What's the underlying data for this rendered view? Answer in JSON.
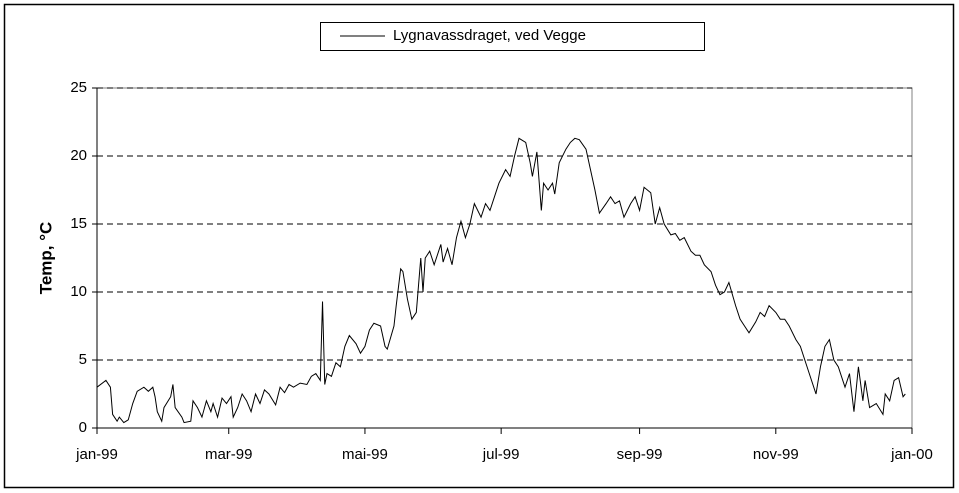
{
  "chart_data": {
    "type": "line",
    "y_label": "Temp, °C",
    "legend": "top",
    "grid": true,
    "xlim": [
      0,
      365
    ],
    "xticks": [
      {
        "value": 0,
        "label": "jan-99"
      },
      {
        "value": 59,
        "label": "mar-99"
      },
      {
        "value": 120,
        "label": "mai-99"
      },
      {
        "value": 181,
        "label": "jul-99"
      },
      {
        "value": 243,
        "label": "sep-99"
      },
      {
        "value": 304,
        "label": "nov-99"
      },
      {
        "value": 365,
        "label": "jan-00"
      }
    ],
    "ylim": [
      0,
      25
    ],
    "yticks": [
      0,
      5,
      10,
      15,
      20,
      25
    ],
    "x": [
      0,
      4,
      6,
      7,
      9,
      10,
      12,
      14,
      16,
      18,
      21,
      23,
      25,
      26,
      27,
      29,
      30,
      33,
      34,
      35,
      38,
      39,
      42,
      43,
      45,
      47,
      49,
      51,
      52,
      54,
      56,
      58,
      60,
      61,
      63,
      65,
      67,
      69,
      71,
      73,
      75,
      77,
      80,
      82,
      84,
      86,
      88,
      91,
      94,
      96,
      98,
      100,
      101,
      102,
      103,
      105,
      107,
      109,
      111,
      113,
      116,
      118,
      120,
      122,
      124,
      127,
      129,
      130,
      133,
      134,
      136,
      137,
      139,
      141,
      143,
      145,
      146,
      147,
      149,
      151,
      154,
      155,
      157,
      159,
      161,
      163,
      165,
      167,
      169,
      172,
      174,
      176,
      178,
      180,
      183,
      185,
      187,
      189,
      192,
      194,
      195,
      197,
      199,
      200,
      202,
      204,
      205,
      207,
      210,
      212,
      214,
      216,
      219,
      221,
      223,
      225,
      228,
      230,
      232,
      234,
      236,
      239,
      241,
      243,
      245,
      248,
      250,
      252,
      254,
      257,
      259,
      261,
      263,
      266,
      268,
      270,
      272,
      275,
      277,
      279,
      281,
      283,
      286,
      288,
      290,
      292,
      295,
      297,
      299,
      301,
      304,
      306,
      308,
      310,
      313,
      315,
      317,
      319,
      322,
      324,
      326,
      328,
      330,
      332,
      335,
      337,
      339,
      341,
      343,
      344,
      346,
      349,
      352,
      353,
      355,
      357,
      359,
      361,
      362
    ],
    "series": [
      {
        "name": "Lygnavassdraget, ved Vegge",
        "color": "#000000",
        "values": [
          3.0,
          3.5,
          3.0,
          1.0,
          0.5,
          0.8,
          0.4,
          0.6,
          1.8,
          2.7,
          3.0,
          2.7,
          3.0,
          2.3,
          1.2,
          0.5,
          1.5,
          2.3,
          3.2,
          1.5,
          0.8,
          0.4,
          0.5,
          2.0,
          1.5,
          0.8,
          2.0,
          1.2,
          1.8,
          0.8,
          2.2,
          1.8,
          2.3,
          0.8,
          1.5,
          2.5,
          2.0,
          1.2,
          2.5,
          1.8,
          2.8,
          2.5,
          1.7,
          3.0,
          2.6,
          3.2,
          3.0,
          3.3,
          3.2,
          3.8,
          4.0,
          3.5,
          9.3,
          3.2,
          4.0,
          3.8,
          4.8,
          4.5,
          6.0,
          6.8,
          6.2,
          5.5,
          6.0,
          7.2,
          7.7,
          7.5,
          6.0,
          5.8,
          7.5,
          9.0,
          11.7,
          11.5,
          9.5,
          8.0,
          8.5,
          12.5,
          10.0,
          12.5,
          13.0,
          12.0,
          13.5,
          12.2,
          13.2,
          12.0,
          14.0,
          15.2,
          14.0,
          15.0,
          16.5,
          15.5,
          16.5,
          16.0,
          17.0,
          18.0,
          19.0,
          18.5,
          20.0,
          21.3,
          21.0,
          19.5,
          18.5,
          20.3,
          16.0,
          18.0,
          17.5,
          18.0,
          17.2,
          19.5,
          20.5,
          21.0,
          21.3,
          21.2,
          20.5,
          19.0,
          17.5,
          15.8,
          16.5,
          17.0,
          16.5,
          16.7,
          15.5,
          16.5,
          17.0,
          16.0,
          17.7,
          17.3,
          15.0,
          16.2,
          15.0,
          14.2,
          14.3,
          13.8,
          14.0,
          13.0,
          12.7,
          12.7,
          12.0,
          11.5,
          10.5,
          9.8,
          10.0,
          10.7,
          9.0,
          8.0,
          7.5,
          7.0,
          7.8,
          8.5,
          8.2,
          9.0,
          8.5,
          8.0,
          8.0,
          7.5,
          6.5,
          6.0,
          5.0,
          4.0,
          2.5,
          4.5,
          6.0,
          6.5,
          5.0,
          4.5,
          3.0,
          4.0,
          1.2,
          4.5,
          2.0,
          3.5,
          1.5,
          1.8,
          1.0,
          2.5,
          2.0,
          3.5,
          3.7,
          2.3,
          2.5
        ]
      }
    ]
  }
}
